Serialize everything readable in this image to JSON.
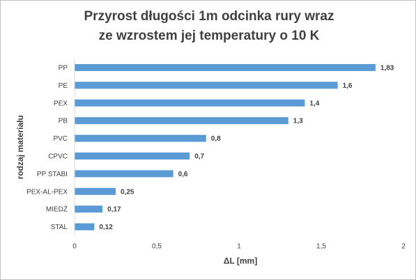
{
  "chart_data": {
    "type": "bar",
    "orientation": "horizontal",
    "title": "Przyrost długości 1m odcinka rury wraz ze wzrostem jej temperatury o 10 K",
    "xlabel": "ΔL [mm]",
    "ylabel": "rodzaj materiału",
    "categories": [
      "PP",
      "PE",
      "PEX",
      "PB",
      "PVC",
      "CPVC",
      "PP STABI",
      "PEX-AL-PEX",
      "MIEDŹ",
      "STAL"
    ],
    "values": [
      1.83,
      1.6,
      1.4,
      1.3,
      0.8,
      0.7,
      0.6,
      0.25,
      0.17,
      0.12
    ],
    "data_labels": [
      "1,83",
      "1,6",
      "1,4",
      "1,3",
      "0,8",
      "0,7",
      "0,6",
      "0,25",
      "0,17",
      "0,12"
    ],
    "xlim": [
      0,
      2
    ],
    "xticks": [
      0,
      0.5,
      1,
      1.5,
      2
    ],
    "xtick_labels": [
      "0",
      "0,5",
      "1",
      "1,5",
      "2"
    ],
    "bar_color": "#5b9bd5",
    "grid": false,
    "legend": "none"
  }
}
